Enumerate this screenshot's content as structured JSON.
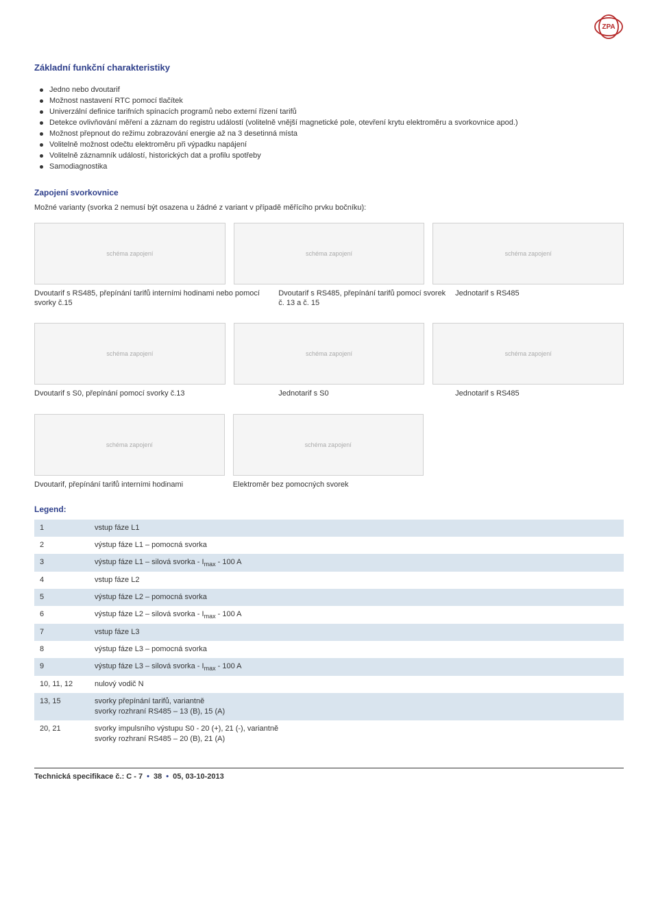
{
  "logo_text": "ZPA",
  "logo_color": "#b52828",
  "heading1": "Základní funkční charakteristiky",
  "bullets": [
    "Jedno nebo dvoutarif",
    "Možnost nastavení RTC pomocí tlačítek",
    "Univerzální definice tarifních spínacích programů nebo externí řízení tarifů",
    "Detekce ovlivňování měření a záznam do registru událostí (volitelně vnější magnetické pole, otevření krytu elektroměru a svorkovnice apod.)",
    "Možnost přepnout do režimu zobrazování energie až na 3 desetinná místa",
    "Volitelně možnost odečtu elektroměru při výpadku napájení",
    "Volitelně záznamník událostí, historických dat a profilu spotřeby",
    "Samodiagnostika"
  ],
  "heading2": "Zapojení svorkovnice",
  "intro": "Možné varianty (svorka 2 nemusí být osazena u žádné z variant v případě měřícího prvku bočníku):",
  "row1": {
    "ph": [
      "schéma zapojení",
      "schéma zapojení",
      "schéma zapojení"
    ],
    "captions": [
      "Dvoutarif s RS485, přepínání tarifů interními hodinami nebo pomocí svorky č.15",
      "Dvoutarif s RS485, přepínání tarifů pomocí svorek č. 13 a č. 15",
      "Jednotarif s RS485"
    ]
  },
  "row2": {
    "ph": [
      "schéma zapojení",
      "schéma zapojení",
      "schéma zapojení"
    ],
    "captions": [
      "Dvoutarif s S0, přepínání pomocí svorky č.13",
      "Jednotarif s S0",
      "Jednotarif s RS485"
    ]
  },
  "row3": {
    "ph": [
      "schéma zapojení",
      "schéma zapojení"
    ],
    "captions": [
      "Dvoutarif, přepínání tarifů interními hodinami",
      "Elektroměr bez pomocných svorek"
    ]
  },
  "legend_title": "Legend:",
  "legend": [
    {
      "n": "1",
      "d": "vstup fáze  L1"
    },
    {
      "n": "2",
      "d": "výstup fáze L1 – pomocná svorka"
    },
    {
      "n": "3",
      "d": "výstup fáze L1 – silová svorka - I|max| - 100 A"
    },
    {
      "n": "4",
      "d": "vstup fáze  L2"
    },
    {
      "n": "5",
      "d": "výstup fáze L2 – pomocná svorka"
    },
    {
      "n": "6",
      "d": "výstup fáze L2 – silová svorka - I|max| - 100 A"
    },
    {
      "n": "7",
      "d": "vstup fáze  L3"
    },
    {
      "n": "8",
      "d": "výstup fáze L3 – pomocná svorka"
    },
    {
      "n": "9",
      "d": "výstup fáze L3 – silová svorka - I|max| - 100 A"
    },
    {
      "n": "10, 11, 12",
      "d": "nulový vodič N"
    },
    {
      "n": "13, 15",
      "d": "svorky přepínání tarifů, variantně\nsvorky rozhraní RS485 – 13 (B), 15 (A)"
    },
    {
      "n": "20, 21",
      "d": "svorky impulsního výstupu S0 - 20 (+),  21 (-), variantně\nsvorky rozhraní RS485 – 20 (B), 21 (A)"
    }
  ],
  "footer_prefix": "Technická specifikace č.: C - 7",
  "footer_page": "38",
  "footer_date": "05, 03-10-2013"
}
